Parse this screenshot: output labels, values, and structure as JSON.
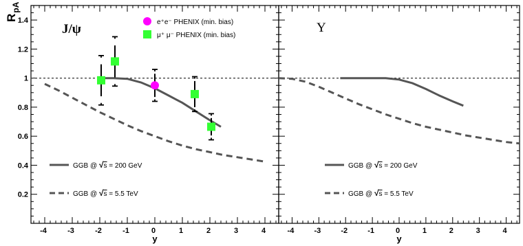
{
  "chart_data": {
    "type": "line",
    "ylabel": "R",
    "ylabel_sub": "pA",
    "xlabel": "y",
    "xlim": [
      -4.5,
      4.5
    ],
    "ylim": [
      0,
      1.5
    ],
    "x_ticks": [
      -4,
      -3,
      -2,
      -1,
      0,
      1,
      2,
      3,
      4
    ],
    "y_ticks": [
      0.2,
      0.4,
      0.6,
      0.8,
      1,
      1.2,
      1.4
    ],
    "y_tick_labels": [
      "0.2",
      "0.4",
      "0.6",
      "0.8",
      "1",
      "1.2",
      "1.4"
    ],
    "reference_line": 1,
    "panels": [
      {
        "title": "J/ψ",
        "series": [
          {
            "name": "GGB @ √s = 200 GeV",
            "style": "solid",
            "color": "#555555",
            "x": [
              -1.9,
              -1.5,
              -1.0,
              -0.5,
              0,
              0.5,
              1.0,
              1.5,
              2.0,
              2.4
            ],
            "y": [
              1.0,
              1.0,
              0.995,
              0.97,
              0.93,
              0.88,
              0.83,
              0.77,
              0.71,
              0.665
            ]
          },
          {
            "name": "GGB @ √s = 5.5 TeV",
            "style": "dashed",
            "color": "#555555",
            "x": [
              -4,
              -3.5,
              -3,
              -2.5,
              -2,
              -1.5,
              -1,
              -0.5,
              0,
              0.5,
              1,
              1.5,
              2,
              2.5,
              3,
              3.5,
              4
            ],
            "y": [
              0.96,
              0.915,
              0.865,
              0.815,
              0.765,
              0.72,
              0.675,
              0.635,
              0.6,
              0.565,
              0.535,
              0.51,
              0.49,
              0.47,
              0.455,
              0.44,
              0.425
            ]
          }
        ],
        "points": [
          {
            "name": "e⁺e⁻ PHENIX (min. bias)",
            "marker": "circle",
            "color": "#ff00ff",
            "x": [
              0
            ],
            "y": [
              0.95
            ],
            "stat_err": [
              0.08
            ],
            "syst_err": [
              0.11
            ]
          },
          {
            "name": "μ⁺ μ⁻ PHENIX (min. bias)",
            "marker": "square",
            "color": "#33ff33",
            "x": [
              -1.95,
              -1.45,
              1.45,
              2.05
            ],
            "y": [
              0.985,
              1.115,
              0.89,
              0.665
            ],
            "stat_err": [
              0.11,
              0.11,
              0.09,
              0.06
            ],
            "syst_err": [
              0.17,
              0.17,
              0.12,
              0.09
            ]
          }
        ]
      },
      {
        "title": "Υ",
        "series": [
          {
            "name": "GGB @ √s = 200 GeV",
            "style": "solid",
            "color": "#555555",
            "x": [
              -2.2,
              -1.5,
              -1.0,
              -0.5,
              0,
              0.5,
              1.0,
              1.5,
              2.0,
              2.4
            ],
            "y": [
              1.0,
              1.0,
              1.0,
              1.0,
              0.99,
              0.965,
              0.925,
              0.88,
              0.84,
              0.81
            ]
          },
          {
            "name": "GGB @ √s = 5.5 TeV",
            "style": "dashed",
            "color": "#555555",
            "x": [
              -4.5,
              -4,
              -3.5,
              -3,
              -2.5,
              -2,
              -1.5,
              -1,
              -0.5,
              0,
              0.5,
              1,
              1.5,
              2,
              2.5,
              3,
              3.5,
              4,
              4.5
            ],
            "y": [
              1.0,
              0.995,
              0.975,
              0.94,
              0.9,
              0.86,
              0.82,
              0.785,
              0.75,
              0.72,
              0.69,
              0.665,
              0.645,
              0.625,
              0.605,
              0.59,
              0.575,
              0.56,
              0.55
            ]
          }
        ]
      }
    ]
  },
  "legend": {
    "dash_200": "GGB @ ",
    "sqrt_s": "s",
    "rest_200": " = 200 GeV",
    "rest_55": " = 5.5 TeV",
    "ee": "e⁺e⁻ PHENIX (min. bias)",
    "mumu": "μ⁺ μ⁻ PHENIX (min. bias)"
  }
}
